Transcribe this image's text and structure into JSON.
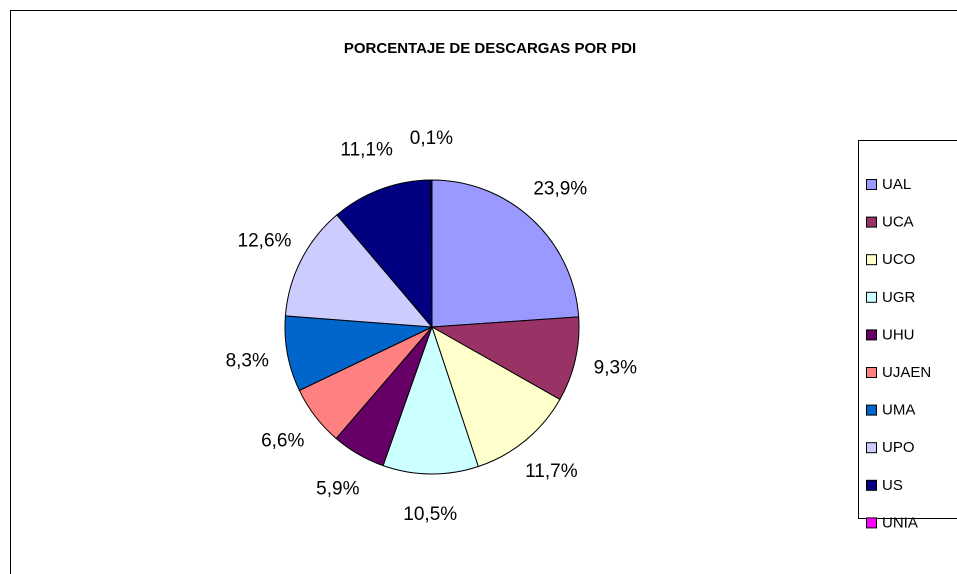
{
  "chart_data": {
    "type": "pie",
    "title": "PORCENTAJE DE DESCARGAS POR PDI",
    "categories": [
      "UAL",
      "UCA",
      "UCO",
      "UGR",
      "UHU",
      "UJAEN",
      "UMA",
      "UPO",
      "US",
      "UNIA"
    ],
    "values": [
      23.9,
      9.3,
      11.7,
      10.5,
      5.9,
      6.6,
      8.3,
      12.6,
      11.1,
      0.1
    ],
    "value_labels": [
      "23,9%",
      "9,3%",
      "11,7%",
      "10,5%",
      "5,9%",
      "6,6%",
      "8,3%",
      "12,6%",
      "11,1%",
      "0,1%"
    ],
    "colors": [
      "#9999ff",
      "#993366",
      "#ffffcc",
      "#ccffff",
      "#660066",
      "#ff8080",
      "#0066cc",
      "#ccccff",
      "#000080",
      "#ff00ff"
    ],
    "legend": "right"
  }
}
